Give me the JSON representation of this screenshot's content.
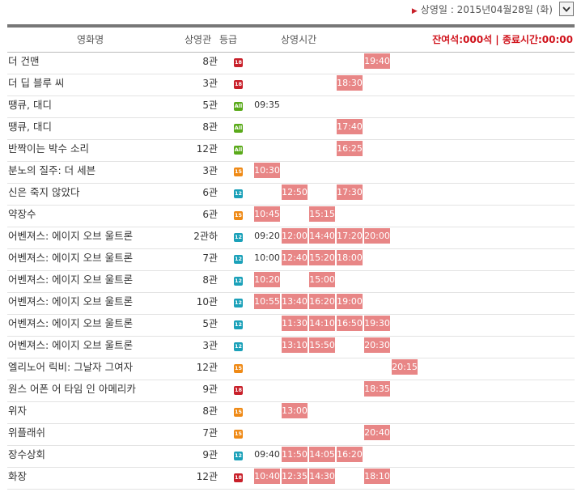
{
  "header": {
    "date_arrow": "▶",
    "date_text": "상영일 : 2015년04월28일 (화)",
    "dropdown_icon": "chevron-down-icon"
  },
  "columns": {
    "title": "영화명",
    "hall": "상영관",
    "rating": "등급",
    "times": "상영시간",
    "info": "잔여석:000석 | 종료시간:00:00"
  },
  "colors": {
    "accent": "#c8202a",
    "slot": "#e88686",
    "r18": "#c8202a",
    "r15": "#ef8a16",
    "r12": "#1ba1b9",
    "rall": "#5aaa1a"
  },
  "rows": [
    {
      "title": "더 건맨",
      "hall": "8관",
      "rating": "18",
      "times": [
        {
          "col": 4,
          "t": "19:40",
          "on": true
        }
      ]
    },
    {
      "title": "더 딥 블루 씨",
      "hall": "3관",
      "rating": "18",
      "times": [
        {
          "col": 3,
          "t": "18:30",
          "on": true
        }
      ]
    },
    {
      "title": "땡큐, 대디",
      "hall": "5관",
      "rating": "All",
      "times": [
        {
          "col": 0,
          "t": "09:35",
          "on": false
        }
      ]
    },
    {
      "title": "땡큐, 대디",
      "hall": "8관",
      "rating": "All",
      "times": [
        {
          "col": 3,
          "t": "17:40",
          "on": true
        }
      ]
    },
    {
      "title": "반짝이는 박수 소리",
      "hall": "12관",
      "rating": "All",
      "times": [
        {
          "col": 3,
          "t": "16:25",
          "on": true
        }
      ]
    },
    {
      "title": "분노의 질주: 더 세븐",
      "hall": "3관",
      "rating": "15",
      "times": [
        {
          "col": 0,
          "t": "10:30",
          "on": true
        }
      ]
    },
    {
      "title": "신은 죽지 않았다",
      "hall": "6관",
      "rating": "12",
      "times": [
        {
          "col": 1,
          "t": "12:50",
          "on": true
        },
        {
          "col": 3,
          "t": "17:30",
          "on": true
        }
      ]
    },
    {
      "title": "약장수",
      "hall": "6관",
      "rating": "15",
      "times": [
        {
          "col": 0,
          "t": "10:45",
          "on": true
        },
        {
          "col": 2,
          "t": "15:15",
          "on": true
        }
      ]
    },
    {
      "title": "어벤져스: 에이지 오브 울트론",
      "hall": "2관하",
      "rating": "12",
      "times": [
        {
          "col": 0,
          "t": "09:20",
          "on": false
        },
        {
          "col": 1,
          "t": "12:00",
          "on": true
        },
        {
          "col": 2,
          "t": "14:40",
          "on": true
        },
        {
          "col": 3,
          "t": "17:20",
          "on": true
        },
        {
          "col": 4,
          "t": "20:00",
          "on": true
        }
      ]
    },
    {
      "title": "어벤져스: 에이지 오브 울트론",
      "hall": "7관",
      "rating": "12",
      "times": [
        {
          "col": 0,
          "t": "10:00",
          "on": false
        },
        {
          "col": 1,
          "t": "12:40",
          "on": true
        },
        {
          "col": 2,
          "t": "15:20",
          "on": true
        },
        {
          "col": 3,
          "t": "18:00",
          "on": true
        }
      ]
    },
    {
      "title": "어벤져스: 에이지 오브 울트론",
      "hall": "8관",
      "rating": "12",
      "times": [
        {
          "col": 0,
          "t": "10:20",
          "on": true
        },
        {
          "col": 2,
          "t": "15:00",
          "on": true
        }
      ]
    },
    {
      "title": "어벤져스: 에이지 오브 울트론",
      "hall": "10관",
      "rating": "12",
      "times": [
        {
          "col": 0,
          "t": "10:55",
          "on": true
        },
        {
          "col": 1,
          "t": "13:40",
          "on": true
        },
        {
          "col": 2,
          "t": "16:20",
          "on": true
        },
        {
          "col": 3,
          "t": "19:00",
          "on": true
        }
      ]
    },
    {
      "title": "어벤져스: 에이지 오브 울트론",
      "hall": "5관",
      "rating": "12",
      "times": [
        {
          "col": 1,
          "t": "11:30",
          "on": true
        },
        {
          "col": 2,
          "t": "14:10",
          "on": true
        },
        {
          "col": 3,
          "t": "16:50",
          "on": true
        },
        {
          "col": 4,
          "t": "19:30",
          "on": true
        }
      ]
    },
    {
      "title": "어벤져스: 에이지 오브 울트론",
      "hall": "3관",
      "rating": "12",
      "times": [
        {
          "col": 1,
          "t": "13:10",
          "on": true
        },
        {
          "col": 2,
          "t": "15:50",
          "on": true
        },
        {
          "col": 4,
          "t": "20:30",
          "on": true
        }
      ]
    },
    {
      "title": "엘리노어 릭비: 그날자 그여자",
      "hall": "12관",
      "rating": "15",
      "times": [
        {
          "col": 5,
          "t": "20:15",
          "on": true
        }
      ]
    },
    {
      "title": "원스 어폰 어 타임 인 아메리카",
      "hall": "9관",
      "rating": "18",
      "times": [
        {
          "col": 4,
          "t": "18:35",
          "on": true
        }
      ]
    },
    {
      "title": "위자",
      "hall": "8관",
      "rating": "15",
      "times": [
        {
          "col": 1,
          "t": "13:00",
          "on": true
        }
      ]
    },
    {
      "title": "위플래쉬",
      "hall": "7관",
      "rating": "15",
      "times": [
        {
          "col": 4,
          "t": "20:40",
          "on": true
        }
      ]
    },
    {
      "title": "장수상회",
      "hall": "9관",
      "rating": "12",
      "times": [
        {
          "col": 0,
          "t": "09:40",
          "on": false
        },
        {
          "col": 1,
          "t": "11:50",
          "on": true
        },
        {
          "col": 2,
          "t": "14:05",
          "on": true
        },
        {
          "col": 3,
          "t": "16:20",
          "on": true
        }
      ]
    },
    {
      "title": "화장",
      "hall": "12관",
      "rating": "18",
      "times": [
        {
          "col": 0,
          "t": "10:40",
          "on": true
        },
        {
          "col": 1,
          "t": "12:35",
          "on": true
        },
        {
          "col": 2,
          "t": "14:30",
          "on": true
        },
        {
          "col": 4,
          "t": "18:10",
          "on": true
        }
      ]
    }
  ]
}
